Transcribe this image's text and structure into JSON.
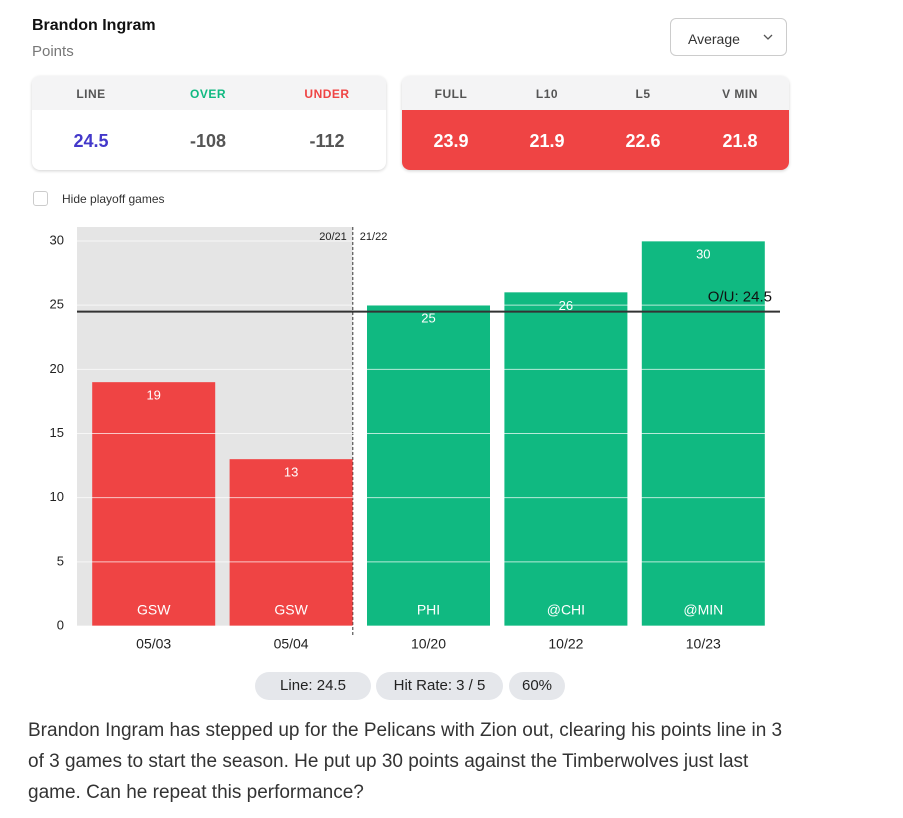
{
  "header": {
    "player": "Brandon Ingram",
    "stat": "Points",
    "dropdown": "Average"
  },
  "odds": {
    "labels": [
      "LINE",
      "OVER",
      "UNDER"
    ],
    "values": [
      24.5,
      -108,
      -112
    ]
  },
  "averages": {
    "labels": [
      "FULL",
      "L10",
      "L5",
      "V MIN"
    ],
    "values": [
      23.9,
      21.9,
      22.6,
      21.8
    ]
  },
  "filter": {
    "label": "Hide playoff games"
  },
  "chart_data": {
    "type": "bar",
    "categories": [
      "05/03",
      "05/04",
      "10/20",
      "10/22",
      "10/23"
    ],
    "opponents": [
      "GSW",
      "GSW",
      "PHI",
      "@CHI",
      "@MIN"
    ],
    "season": [
      "20/21",
      "20/21",
      "21/22",
      "21/22",
      "21/22"
    ],
    "values": [
      19,
      13,
      25,
      26,
      30
    ],
    "colors": [
      "#ef4444",
      "#ef4444",
      "#10b981",
      "#10b981",
      "#10b981"
    ],
    "line": {
      "value": 24.5,
      "label": "O/U: 24.5"
    },
    "ylim": [
      0,
      30
    ],
    "yticks": [
      0,
      5,
      10,
      15,
      20,
      25,
      30
    ],
    "grid": true
  },
  "pills": [
    "Line: 24.5",
    "Hit Rate: 3 / 5",
    "60%"
  ],
  "summary": "Brandon Ingram has stepped up for the Pelicans with Zion out, clearing his points line in 3 of 3 games to start the season. He put up 30 points against the Timberwolves just last game. Can he repeat this performance?"
}
